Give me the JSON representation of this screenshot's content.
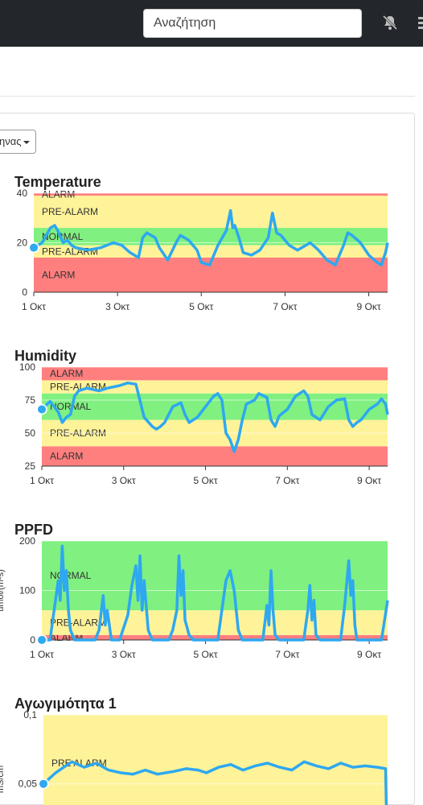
{
  "header": {
    "search_placeholder": "Αναζήτηση",
    "notification_icon": "bell-slash-icon"
  },
  "period_dropdown": {
    "label": "ηνας"
  },
  "chart_data": [
    {
      "type": "line",
      "title": "Temperature",
      "ylim": [
        0,
        40
      ],
      "yticks": [
        "0",
        "20",
        "40"
      ],
      "x_ticks": [
        "1 Οκτ",
        "3 Οκτ",
        "5 Οκτ",
        "7 Οκτ",
        "9 Οκτ"
      ],
      "bands": [
        {
          "from": 0,
          "to": 14,
          "label": "ALARM",
          "color": "#ff7f7f"
        },
        {
          "from": 14,
          "to": 19,
          "label": "PRE-ALARM",
          "color": "#fff39a"
        },
        {
          "from": 19,
          "to": 26,
          "label": "NORMAL",
          "color": "#80f080"
        },
        {
          "from": 26,
          "to": 39,
          "label": "PRE-ALARM",
          "color": "#fff39a"
        },
        {
          "from": 39,
          "to": 40,
          "label": "ALARM",
          "color": "#ff7f7f"
        }
      ],
      "series": [
        {
          "color": "#2ea8f0",
          "values": [
            [
              1.0,
              18
            ],
            [
              1.2,
              20
            ],
            [
              1.3,
              23
            ],
            [
              1.4,
              26
            ],
            [
              1.5,
              27
            ],
            [
              1.6,
              24
            ],
            [
              1.7,
              20
            ],
            [
              1.8,
              21
            ],
            [
              1.9,
              19
            ],
            [
              2.0,
              18
            ],
            [
              2.3,
              17
            ],
            [
              2.6,
              18
            ],
            [
              2.9,
              20
            ],
            [
              3.1,
              19
            ],
            [
              3.3,
              16
            ],
            [
              3.5,
              14
            ],
            [
              3.6,
              22
            ],
            [
              3.7,
              24
            ],
            [
              3.8,
              23
            ],
            [
              3.9,
              22
            ],
            [
              4.0,
              18
            ],
            [
              4.2,
              13
            ],
            [
              4.4,
              20
            ],
            [
              4.5,
              23
            ],
            [
              4.6,
              22
            ],
            [
              4.7,
              21
            ],
            [
              4.8,
              19
            ],
            [
              4.9,
              17
            ],
            [
              5.0,
              12
            ],
            [
              5.2,
              11
            ],
            [
              5.4,
              19
            ],
            [
              5.6,
              25
            ],
            [
              5.7,
              33
            ],
            [
              5.75,
              26
            ],
            [
              5.8,
              27
            ],
            [
              5.9,
              22
            ],
            [
              6.0,
              16
            ],
            [
              6.2,
              15
            ],
            [
              6.4,
              17
            ],
            [
              6.6,
              22
            ],
            [
              6.7,
              32
            ],
            [
              6.8,
              24
            ],
            [
              6.9,
              23
            ],
            [
              7.1,
              19
            ],
            [
              7.3,
              17
            ],
            [
              7.5,
              19
            ],
            [
              7.6,
              20
            ],
            [
              7.8,
              17
            ],
            [
              8.0,
              13
            ],
            [
              8.2,
              11
            ],
            [
              8.4,
              19
            ],
            [
              8.5,
              24
            ],
            [
              8.6,
              23
            ],
            [
              8.8,
              20
            ],
            [
              9.0,
              15
            ],
            [
              9.2,
              12
            ],
            [
              9.3,
              11
            ],
            [
              9.4,
              16
            ],
            [
              9.45,
              20
            ]
          ]
        }
      ]
    },
    {
      "type": "line",
      "title": "Humidity",
      "ylim": [
        25,
        100
      ],
      "yticks": [
        "25",
        "50",
        "75",
        "100"
      ],
      "x_ticks": [
        "1 Οκτ",
        "3 Οκτ",
        "5 Οκτ",
        "7 Οκτ",
        "9 Οκτ"
      ],
      "bands": [
        {
          "from": 25,
          "to": 40,
          "label": "ALARM",
          "color": "#ff7f7f"
        },
        {
          "from": 40,
          "to": 60,
          "label": "PRE-ALARM",
          "color": "#fff39a"
        },
        {
          "from": 60,
          "to": 80,
          "label": "NORMAL",
          "color": "#80f080"
        },
        {
          "from": 80,
          "to": 90,
          "label": "PRE-ALARM",
          "color": "#fff39a"
        },
        {
          "from": 90,
          "to": 100,
          "label": "ALARM",
          "color": "#ff7f7f"
        }
      ],
      "series": [
        {
          "color": "#2ea8f0",
          "values": [
            [
              1.0,
              68
            ],
            [
              1.2,
              74
            ],
            [
              1.4,
              66
            ],
            [
              1.5,
              58
            ],
            [
              1.6,
              62
            ],
            [
              1.7,
              64
            ],
            [
              1.8,
              78
            ],
            [
              1.9,
              82
            ],
            [
              2.1,
              84
            ],
            [
              2.4,
              82
            ],
            [
              2.6,
              84
            ],
            [
              2.9,
              86
            ],
            [
              3.1,
              88
            ],
            [
              3.3,
              87
            ],
            [
              3.5,
              62
            ],
            [
              3.7,
              55
            ],
            [
              3.8,
              53
            ],
            [
              3.9,
              55
            ],
            [
              4.0,
              58
            ],
            [
              4.2,
              70
            ],
            [
              4.4,
              73
            ],
            [
              4.5,
              64
            ],
            [
              4.6,
              58
            ],
            [
              4.8,
              62
            ],
            [
              5.0,
              70
            ],
            [
              5.2,
              78
            ],
            [
              5.3,
              80
            ],
            [
              5.4,
              75
            ],
            [
              5.5,
              50
            ],
            [
              5.6,
              45
            ],
            [
              5.7,
              36
            ],
            [
              5.8,
              45
            ],
            [
              5.9,
              60
            ],
            [
              6.0,
              72
            ],
            [
              6.2,
              75
            ],
            [
              6.3,
              80
            ],
            [
              6.5,
              77
            ],
            [
              6.6,
              60
            ],
            [
              6.7,
              55
            ],
            [
              6.8,
              63
            ],
            [
              7.0,
              68
            ],
            [
              7.2,
              78
            ],
            [
              7.4,
              82
            ],
            [
              7.5,
              78
            ],
            [
              7.6,
              64
            ],
            [
              7.8,
              60
            ],
            [
              8.0,
              70
            ],
            [
              8.2,
              75
            ],
            [
              8.4,
              76
            ],
            [
              8.5,
              60
            ],
            [
              8.6,
              55
            ],
            [
              8.7,
              58
            ],
            [
              8.8,
              60
            ],
            [
              9.0,
              68
            ],
            [
              9.2,
              72
            ],
            [
              9.3,
              76
            ],
            [
              9.4,
              72
            ],
            [
              9.45,
              64
            ]
          ]
        }
      ]
    },
    {
      "type": "line",
      "title": "PPFD",
      "ylabel": "umol/(m²s)",
      "ylim": [
        0,
        200
      ],
      "yticks": [
        "0",
        "100",
        "200"
      ],
      "x_ticks": [
        "1 Οκτ",
        "3 Οκτ",
        "5 Οκτ",
        "7 Οκτ",
        "9 Οκτ"
      ],
      "bands": [
        {
          "from": 0,
          "to": 10,
          "label": "ALARM",
          "color": "#ff7f7f"
        },
        {
          "from": 10,
          "to": 60,
          "label": "PRE-ALARM",
          "color": "#fff39a"
        },
        {
          "from": 60,
          "to": 200,
          "label": "NORMAL",
          "color": "#80f080"
        }
      ],
      "series": [
        {
          "color": "#2ea8f0",
          "values": [
            [
              1.0,
              0
            ],
            [
              1.2,
              0
            ],
            [
              1.3,
              60
            ],
            [
              1.4,
              120
            ],
            [
              1.45,
              80
            ],
            [
              1.5,
              190
            ],
            [
              1.55,
              100
            ],
            [
              1.6,
              140
            ],
            [
              1.65,
              60
            ],
            [
              1.7,
              20
            ],
            [
              1.8,
              0
            ],
            [
              2.3,
              0
            ],
            [
              2.4,
              20
            ],
            [
              2.5,
              90
            ],
            [
              2.55,
              30
            ],
            [
              2.6,
              60
            ],
            [
              2.7,
              0
            ],
            [
              2.9,
              0
            ],
            [
              3.1,
              50
            ],
            [
              3.2,
              110
            ],
            [
              3.3,
              150
            ],
            [
              3.35,
              80
            ],
            [
              3.4,
              170
            ],
            [
              3.45,
              60
            ],
            [
              3.5,
              120
            ],
            [
              3.6,
              20
            ],
            [
              3.7,
              0
            ],
            [
              4.1,
              0
            ],
            [
              4.2,
              20
            ],
            [
              4.3,
              60
            ],
            [
              4.35,
              170
            ],
            [
              4.4,
              90
            ],
            [
              4.45,
              140
            ],
            [
              4.5,
              40
            ],
            [
              4.6,
              10
            ],
            [
              4.7,
              0
            ],
            [
              5.3,
              0
            ],
            [
              5.5,
              120
            ],
            [
              5.6,
              140
            ],
            [
              5.7,
              100
            ],
            [
              5.8,
              20
            ],
            [
              5.9,
              0
            ],
            [
              6.4,
              0
            ],
            [
              6.5,
              70
            ],
            [
              6.55,
              30
            ],
            [
              6.6,
              140
            ],
            [
              6.65,
              60
            ],
            [
              6.7,
              10
            ],
            [
              6.8,
              0
            ],
            [
              7.4,
              0
            ],
            [
              7.5,
              60
            ],
            [
              7.55,
              110
            ],
            [
              7.6,
              40
            ],
            [
              7.65,
              80
            ],
            [
              7.7,
              10
            ],
            [
              7.8,
              0
            ],
            [
              8.3,
              0
            ],
            [
              8.4,
              70
            ],
            [
              8.5,
              160
            ],
            [
              8.55,
              90
            ],
            [
              8.6,
              120
            ],
            [
              8.65,
              30
            ],
            [
              8.7,
              0
            ],
            [
              9.3,
              0
            ],
            [
              9.45,
              80
            ]
          ]
        }
      ]
    },
    {
      "type": "line",
      "title": "Αγωγιμότητα 1",
      "ylabel": "mS/cm",
      "ylim": [
        0.03,
        0.1
      ],
      "yticks": [
        "0,05",
        "0,1"
      ],
      "x_ticks": [],
      "bands": [
        {
          "from": 0.03,
          "to": 0.1,
          "label": "PRE ALARM",
          "color": "#fff39a"
        }
      ],
      "series": [
        {
          "color": "#2ea8f0",
          "values": [
            [
              1.0,
              0.05
            ],
            [
              1.3,
              0.058
            ],
            [
              1.5,
              0.062
            ],
            [
              1.7,
              0.066
            ],
            [
              2.0,
              0.062
            ],
            [
              2.3,
              0.065
            ],
            [
              2.6,
              0.06
            ],
            [
              2.9,
              0.058
            ],
            [
              3.2,
              0.057
            ],
            [
              3.5,
              0.06
            ],
            [
              3.8,
              0.057
            ],
            [
              4.2,
              0.059
            ],
            [
              4.5,
              0.061
            ],
            [
              4.8,
              0.06
            ],
            [
              5.0,
              0.058
            ],
            [
              5.3,
              0.062
            ],
            [
              5.6,
              0.064
            ],
            [
              5.9,
              0.06
            ],
            [
              6.2,
              0.063
            ],
            [
              6.5,
              0.065
            ],
            [
              6.8,
              0.062
            ],
            [
              7.1,
              0.06
            ],
            [
              7.4,
              0.066
            ],
            [
              7.7,
              0.063
            ],
            [
              8.0,
              0.061
            ],
            [
              8.3,
              0.065
            ],
            [
              8.6,
              0.062
            ],
            [
              8.9,
              0.063
            ],
            [
              9.2,
              0.062
            ],
            [
              9.4,
              0.061
            ],
            [
              9.42,
              0.03
            ]
          ]
        }
      ]
    }
  ]
}
